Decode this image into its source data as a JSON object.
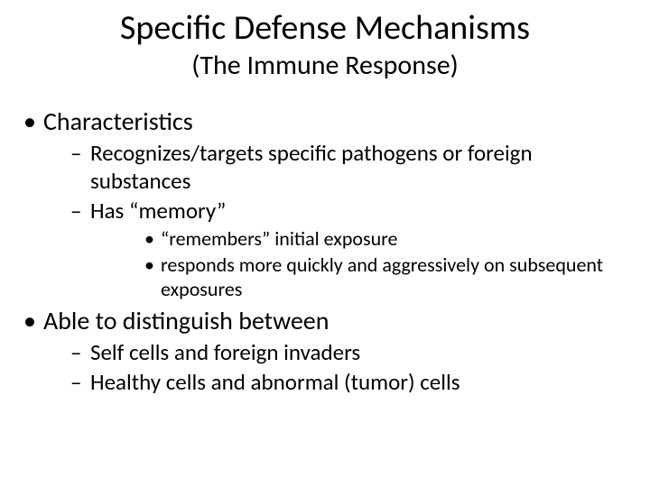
{
  "title": {
    "text": "Specific Defense Mechanisms",
    "fontsize": 38,
    "color": "#000000"
  },
  "subtitle": {
    "text": "(The Immune Response)",
    "fontsize": 30,
    "color": "#000000"
  },
  "bullets": {
    "lvl1_fontsize": 28,
    "lvl2_fontsize": 25,
    "lvl3_fontsize": 22,
    "items": [
      {
        "text": "Characteristics",
        "children": [
          {
            "text": "Recognizes/targets specific pathogens or foreign substances",
            "children": []
          },
          {
            "text": "Has “memory”",
            "children": [
              {
                "text": "“remembers” initial exposure"
              },
              {
                "text": "responds more quickly and aggressively on subsequent exposures"
              }
            ]
          }
        ]
      },
      {
        "text": "Able to distinguish between",
        "children": [
          {
            "text": "Self cells and foreign invaders",
            "children": []
          },
          {
            "text": "Healthy cells and abnormal (tumor) cells",
            "children": []
          }
        ]
      }
    ]
  },
  "background_color": "#ffffff"
}
